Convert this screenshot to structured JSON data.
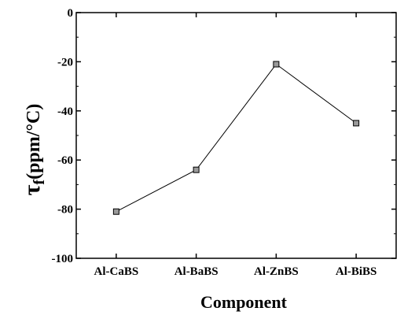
{
  "chart_data": {
    "type": "line",
    "categories": [
      "Al-CaBS",
      "Al-BaBS",
      "Al-ZnBS",
      "Al-BiBS"
    ],
    "series": [
      {
        "values": [
          -81,
          -64,
          -21,
          -45
        ]
      }
    ],
    "xlabel": "Component",
    "ylabel": {
      "symbol": "τ",
      "subscript": "f",
      "units": "(ppm/°C)"
    },
    "ylim": [
      -100,
      0
    ],
    "yticks": [
      0,
      -20,
      -40,
      -60,
      -80,
      -100
    ],
    "ytick_labels": [
      "0",
      "-20",
      "-40",
      "-60",
      "-80",
      "-100"
    ],
    "grid": false,
    "line_color": "#000000",
    "marker": "square"
  }
}
